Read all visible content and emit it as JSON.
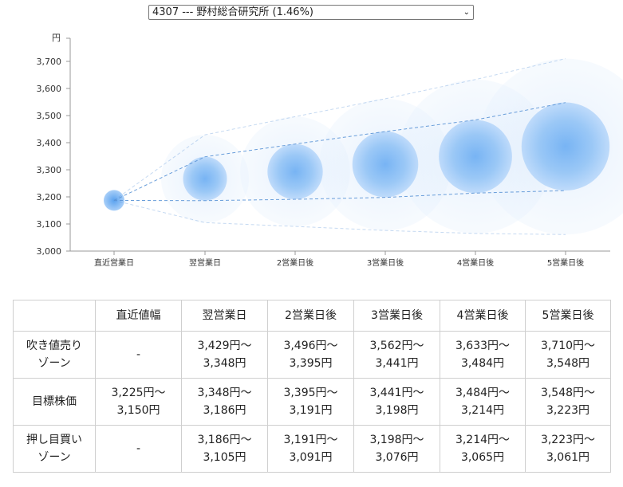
{
  "selector": {
    "value": "4307 --- 野村総合研究所 (1.46%)"
  },
  "chart_data": {
    "type": "scatter",
    "unit_label": "円",
    "ylim": [
      3000,
      3700
    ],
    "yticks": [
      "3,000",
      "3,100",
      "3,200",
      "3,300",
      "3,400",
      "3,500",
      "3,600",
      "3,700"
    ],
    "categories": [
      "直近営業日",
      "翌営業日",
      "2営業日後",
      "3営業日後",
      "4営業日後",
      "5営業日後"
    ],
    "center": [
      3187,
      3267,
      3293,
      3320,
      3349,
      3386
    ],
    "upper": [
      3187,
      3348,
      3395,
      3441,
      3484,
      3548
    ],
    "lower": [
      3187,
      3186,
      3191,
      3198,
      3214,
      3223
    ],
    "upper_outer": [
      3187,
      3429,
      3496,
      3562,
      3633,
      3710
    ],
    "lower_outer": [
      3187,
      3105,
      3091,
      3076,
      3065,
      3061
    ],
    "colors": {
      "core": "#2f86e8",
      "glow": "#cfe3fb",
      "band": "#5a93d6"
    }
  },
  "table": {
    "headers": [
      "",
      "直近値幅",
      "翌営業日",
      "2営業日後",
      "3営業日後",
      "4営業日後",
      "5営業日後"
    ],
    "rows": [
      {
        "label": [
          "吹き値売り",
          "ゾーン"
        ],
        "cells": [
          [
            "-"
          ],
          [
            "3,429円〜",
            "3,348円"
          ],
          [
            "3,496円〜",
            "3,395円"
          ],
          [
            "3,562円〜",
            "3,441円"
          ],
          [
            "3,633円〜",
            "3,484円"
          ],
          [
            "3,710円〜",
            "3,548円"
          ]
        ]
      },
      {
        "label": [
          "目標株価"
        ],
        "cells": [
          [
            "3,225円〜",
            "3,150円"
          ],
          [
            "3,348円〜",
            "3,186円"
          ],
          [
            "3,395円〜",
            "3,191円"
          ],
          [
            "3,441円〜",
            "3,198円"
          ],
          [
            "3,484円〜",
            "3,214円"
          ],
          [
            "3,548円〜",
            "3,223円"
          ]
        ]
      },
      {
        "label": [
          "押し目買い",
          "ゾーン"
        ],
        "cells": [
          [
            "-"
          ],
          [
            "3,186円〜",
            "3,105円"
          ],
          [
            "3,191円〜",
            "3,091円"
          ],
          [
            "3,198円〜",
            "3,076円"
          ],
          [
            "3,214円〜",
            "3,065円"
          ],
          [
            "3,223円〜",
            "3,061円"
          ]
        ]
      }
    ]
  }
}
